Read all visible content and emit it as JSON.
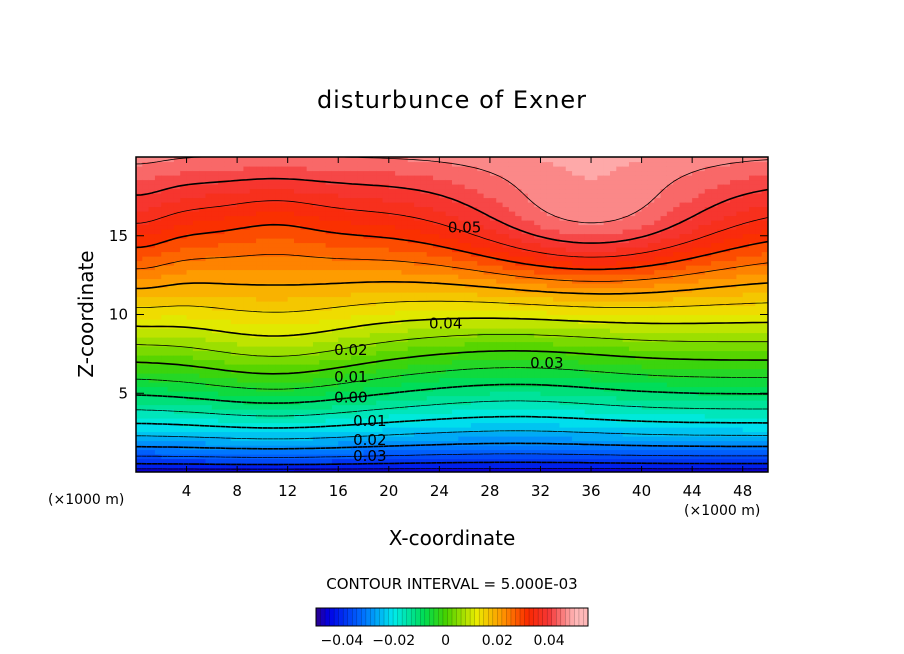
{
  "chart_data": {
    "type": "heatmap",
    "subtype": "filled contour",
    "title": "disturbunce of Exner",
    "xlabel": "X-coordinate",
    "ylabel": "Z-coordinate",
    "x_unit_left": "(×1000 m)",
    "x_unit_right": "(×1000 m)",
    "xlim": [
      0,
      50
    ],
    "ylim": [
      0,
      20
    ],
    "x_ticks": [
      4,
      8,
      12,
      16,
      20,
      24,
      28,
      32,
      36,
      40,
      44,
      48
    ],
    "y_ticks": [
      5,
      10,
      15
    ],
    "contour_interval_text": "CONTOUR INTERVAL = 5.000E-03",
    "contour_interval": 0.005,
    "negative_contours": "dashed",
    "white_region_above": 0.05,
    "contour_labels": [
      {
        "text": "0.05",
        "x": 26,
        "z": 15.5
      },
      {
        "text": "0.04",
        "x": 24.5,
        "z": 9.4
      },
      {
        "text": "0.03",
        "x": 32.5,
        "z": 6.9
      },
      {
        "text": "0.02",
        "x": 17,
        "z": 7.7
      },
      {
        "text": "0.01",
        "x": 17,
        "z": 6.0
      },
      {
        "text": "0.00",
        "x": 17,
        "z": 4.7
      },
      {
        "text": "0.01",
        "x": 18.5,
        "z": 3.2
      },
      {
        "text": "0.02",
        "x": 18.5,
        "z": 2.0
      },
      {
        "text": "0.03",
        "x": 18.5,
        "z": 1.0
      }
    ],
    "colorbar": {
      "range": [
        -0.05,
        0.055
      ],
      "tick_labels": [
        "−0.04",
        "−0.02",
        "0",
        "0.02",
        "0.04"
      ],
      "tick_values": [
        -0.04,
        -0.02,
        0,
        0.02,
        0.04
      ]
    }
  }
}
